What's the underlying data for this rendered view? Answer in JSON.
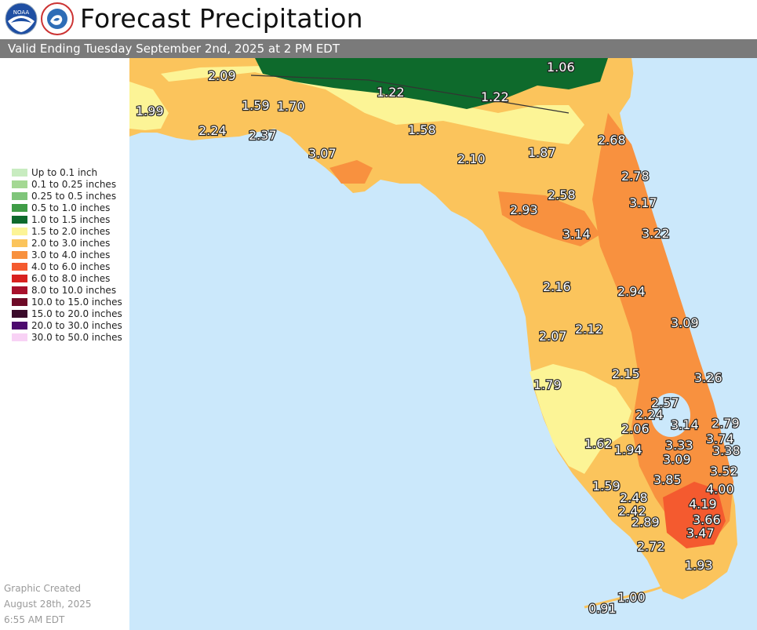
{
  "header": {
    "title": "Forecast Precipitation",
    "valid_text": "Valid Ending Tuesday September 2nd, 2025 at 2 PM EDT",
    "logos": [
      "noaa-logo",
      "nws-logo"
    ]
  },
  "legend": {
    "items": [
      {
        "label": "Up to 0.1 inch",
        "color": "#c8ecc0"
      },
      {
        "label": "0.1 to 0.25 inches",
        "color": "#a4d893"
      },
      {
        "label": "0.25 to 0.5 inches",
        "color": "#7fc57a"
      },
      {
        "label": "0.5 to 1.0 inches",
        "color": "#3f9c46"
      },
      {
        "label": "1.0 to 1.5 inches",
        "color": "#0e6a2c"
      },
      {
        "label": "1.5 to 2.0 inches",
        "color": "#fcf496"
      },
      {
        "label": "2.0 to 3.0 inches",
        "color": "#fbc45c"
      },
      {
        "label": "3.0 to 4.0 inches",
        "color": "#f8913f"
      },
      {
        "label": "4.0 to 6.0 inches",
        "color": "#f45a2f"
      },
      {
        "label": "6.0 to 8.0 inches",
        "color": "#d8211f"
      },
      {
        "label": "8.0 to 10.0 inches",
        "color": "#a8112d"
      },
      {
        "label": "10.0 to 15.0 inches",
        "color": "#6e0a27"
      },
      {
        "label": "15.0 to 20.0 inches",
        "color": "#3a0a2a"
      },
      {
        "label": "20.0 to 30.0 inches",
        "color": "#4c0a6e"
      },
      {
        "label": "30.0 to 50.0 inches",
        "color": "#f8d2f5"
      }
    ]
  },
  "footer": {
    "line1": "Graphic Created",
    "line2": "August 28th, 2025",
    "line3": "6:55 AM EDT"
  },
  "map": {
    "water_color": "#cbe8fb",
    "values": [
      "2.09",
      "1.06",
      "1.99",
      "1.22",
      "1.22",
      "1.59",
      "1.70",
      "2.24",
      "2.37",
      "1.58",
      "2.68",
      "3.07",
      "2.10",
      "1.87",
      "2.78",
      "2.58",
      "3.17",
      "2.93",
      "3.14",
      "3.22",
      "2.16",
      "2.94",
      "3.09",
      "2.07",
      "2.12",
      "1.79",
      "2.15",
      "3.26",
      "2.57",
      "2.24",
      "3.14",
      "2.79",
      "2.06",
      "3.74",
      "1.62",
      "1.94",
      "3.33",
      "3.38",
      "3.09",
      "3.52",
      "1.59",
      "3.85",
      "4.00",
      "2.48",
      "4.19",
      "2.42",
      "3.66",
      "2.89",
      "3.47",
      "2.72",
      "1.93",
      "1.00",
      "0.91"
    ]
  }
}
